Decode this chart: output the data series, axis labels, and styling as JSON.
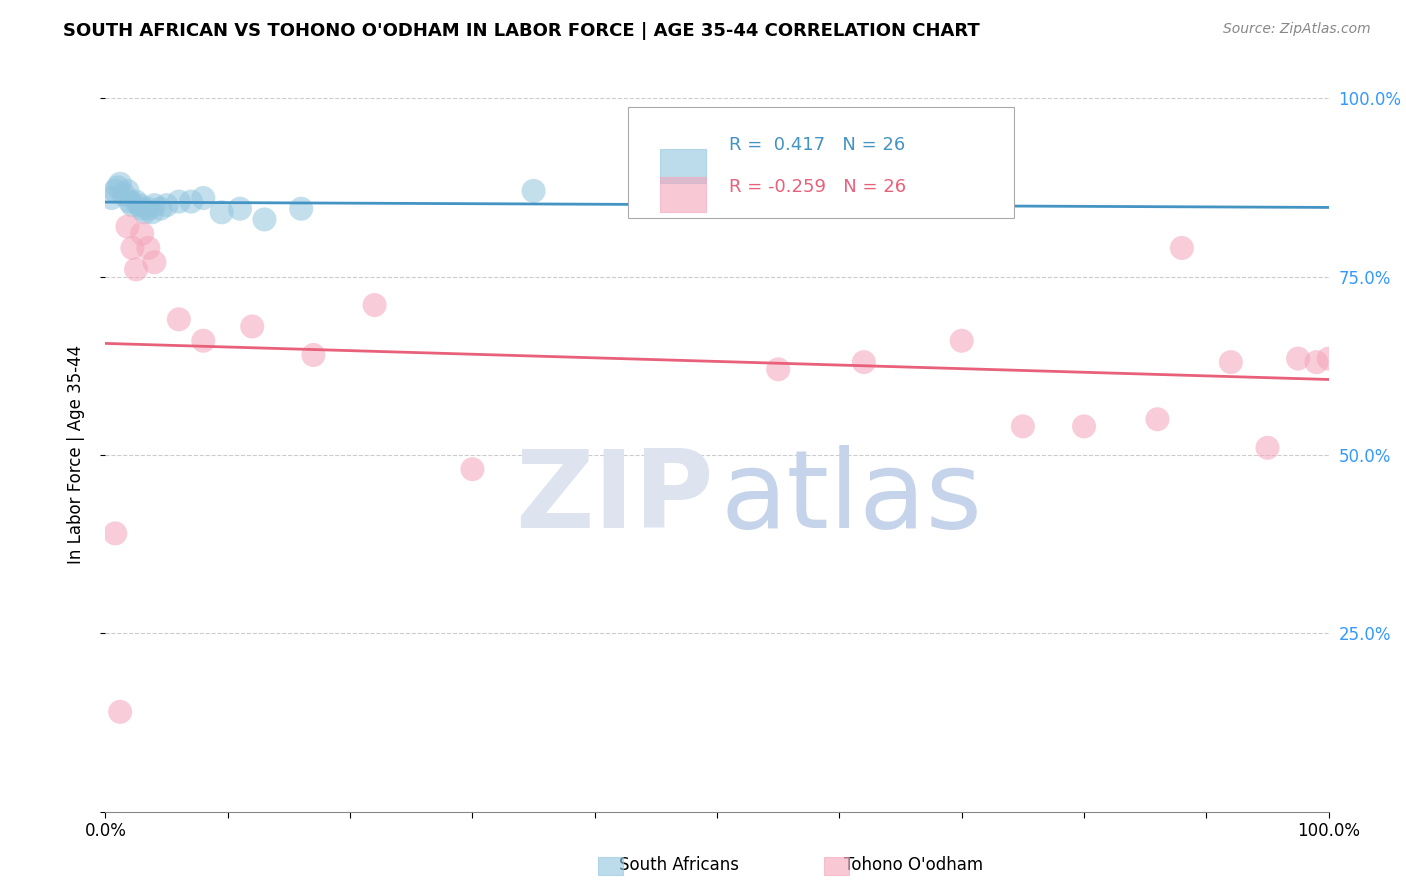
{
  "title": "SOUTH AFRICAN VS TOHONO O'ODHAM IN LABOR FORCE | AGE 35-44 CORRELATION CHART",
  "source": "Source: ZipAtlas.com",
  "ylabel": "In Labor Force | Age 35-44",
  "xlim": [
    0.0,
    1.0
  ],
  "ylim": [
    0.0,
    1.0
  ],
  "south_african_x": [
    0.005,
    0.008,
    0.01,
    0.012,
    0.015,
    0.018,
    0.02,
    0.022,
    0.025,
    0.028,
    0.03,
    0.032,
    0.035,
    0.038,
    0.04,
    0.045,
    0.05,
    0.06,
    0.07,
    0.08,
    0.095,
    0.11,
    0.13,
    0.16,
    0.35,
    0.73
  ],
  "south_african_y": [
    0.86,
    0.87,
    0.875,
    0.88,
    0.865,
    0.87,
    0.855,
    0.85,
    0.855,
    0.85,
    0.845,
    0.84,
    0.845,
    0.84,
    0.85,
    0.845,
    0.85,
    0.855,
    0.855,
    0.86,
    0.84,
    0.845,
    0.83,
    0.845,
    0.87,
    0.85
  ],
  "tohono_x": [
    0.008,
    0.012,
    0.018,
    0.022,
    0.025,
    0.03,
    0.035,
    0.04,
    0.06,
    0.08,
    0.12,
    0.17,
    0.22,
    0.3,
    0.55,
    0.62,
    0.7,
    0.75,
    0.8,
    0.86,
    0.88,
    0.92,
    0.95,
    0.975,
    0.99,
    1.0
  ],
  "tohono_y": [
    0.39,
    0.14,
    0.82,
    0.79,
    0.76,
    0.81,
    0.79,
    0.77,
    0.69,
    0.66,
    0.68,
    0.64,
    0.71,
    0.48,
    0.62,
    0.63,
    0.66,
    0.54,
    0.54,
    0.55,
    0.79,
    0.63,
    0.51,
    0.635,
    0.63,
    0.635
  ],
  "R_south_african": 0.417,
  "N_south_african": 26,
  "R_tohono": -0.259,
  "N_tohono": 26,
  "blue_scatter_color": "#92c5de",
  "blue_line_color": "#4393c3",
  "pink_scatter_color": "#f4a5ba",
  "pink_line_color": "#e8607a",
  "watermark_zip_color": "#dde4f0",
  "watermark_atlas_color": "#c5d4ea",
  "background_color": "#ffffff",
  "grid_color": "#cccccc",
  "right_tick_color": "#3399ff"
}
